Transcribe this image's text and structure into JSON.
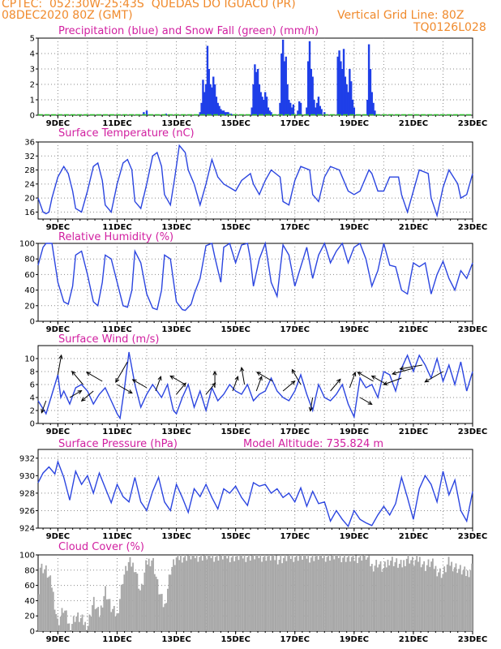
{
  "header": {
    "line1_left": "CPTEC:  052:30W-25:43S  QUEDAS DO IGUACU (PR)",
    "line2_left": "08DEC2020 80Z (GMT)",
    "line2_right": "Vertical Grid Line: 80Z",
    "line3_right": "TQ0126L028"
  },
  "colors": {
    "header": "#f08a2c",
    "title": "#d11fa0",
    "precip": "#1f3fe8",
    "snow": "#2fbf2f",
    "line": "#2b45e0",
    "cloud": "#a8a8a8",
    "arrow": "#000000"
  },
  "x_labels": [
    "9DEC",
    "11DEC",
    "13DEC",
    "15DEC",
    "17DEC",
    "19DEC",
    "21DEC",
    "23DEC"
  ],
  "chart_data": [
    {
      "id": "precip",
      "type": "bar",
      "title": "Precipitation (blue) and Snow Fall (green) (mm/h)",
      "ylim": [
        0,
        5
      ],
      "yticks": [
        0,
        1,
        2,
        3,
        4,
        5
      ],
      "xlim": [
        8.333,
        23.0
      ],
      "grid": true,
      "series": [
        {
          "name": "Precipitation",
          "x": [
            11.9,
            12.0,
            12.65,
            13.8,
            13.85,
            13.9,
            13.95,
            14.0,
            14.05,
            14.1,
            14.15,
            14.2,
            14.25,
            14.3,
            14.35,
            14.4,
            14.45,
            14.5,
            14.55,
            14.6,
            14.65,
            14.7,
            14.75,
            14.8,
            14.85,
            15.55,
            15.6,
            15.65,
            15.7,
            15.75,
            15.8,
            15.85,
            15.9,
            15.95,
            16.0,
            16.05,
            16.1,
            16.15,
            16.2,
            16.5,
            16.55,
            16.6,
            16.65,
            16.7,
            16.75,
            16.8,
            16.85,
            16.9,
            16.95,
            17.1,
            17.15,
            17.2,
            17.4,
            17.45,
            17.5,
            17.55,
            17.6,
            17.65,
            17.7,
            17.75,
            17.8,
            17.85,
            17.9,
            18.0,
            18.45,
            18.5,
            18.55,
            18.6,
            18.65,
            18.7,
            18.75,
            18.8,
            18.85,
            18.9,
            18.95,
            19.0,
            19.45,
            19.5,
            19.55,
            19.6,
            19.65,
            19.7
          ],
          "values": [
            0.2,
            0.3,
            0.1,
            0.2,
            0.8,
            2.3,
            1.5,
            2.0,
            4.5,
            3.0,
            2.0,
            1.8,
            2.5,
            2.0,
            1.2,
            0.8,
            0.6,
            0.4,
            0.3,
            0.3,
            0.2,
            0.2,
            0.2,
            0.1,
            0.1,
            0.5,
            2.0,
            3.3,
            2.8,
            3.0,
            2.0,
            1.5,
            1.2,
            1.0,
            1.5,
            1.2,
            0.5,
            0.3,
            0.2,
            0.8,
            4.0,
            4.9,
            3.5,
            3.8,
            2.0,
            1.0,
            0.8,
            0.5,
            0.7,
            0.3,
            0.9,
            0.8,
            0.5,
            3.5,
            4.8,
            3.0,
            2.5,
            1.0,
            0.5,
            0.8,
            1.2,
            0.6,
            0.4,
            0.2,
            3.8,
            4.2,
            3.5,
            3.0,
            4.3,
            2.5,
            2.0,
            1.5,
            3.0,
            2.2,
            1.0,
            0.5,
            1.0,
            4.6,
            3.0,
            1.5,
            0.8,
            0.3
          ]
        },
        {
          "name": "Snow Fall",
          "values": []
        }
      ]
    },
    {
      "id": "temperature",
      "type": "line",
      "title": "Surface Temperature (nC)",
      "ylim": [
        14,
        36
      ],
      "yticks": [
        16,
        20,
        24,
        28,
        32,
        36
      ],
      "xlim": [
        8.333,
        23.0
      ],
      "grid": true,
      "x": [
        8.333,
        8.5,
        8.6,
        8.7,
        8.8,
        9.0,
        9.2,
        9.35,
        9.5,
        9.6,
        9.8,
        10.0,
        10.2,
        10.35,
        10.5,
        10.6,
        10.8,
        11.0,
        11.2,
        11.35,
        11.5,
        11.6,
        11.8,
        12.0,
        12.2,
        12.35,
        12.5,
        12.6,
        12.8,
        12.95,
        13.1,
        13.3,
        13.4,
        13.6,
        13.8,
        14.0,
        14.2,
        14.4,
        14.6,
        14.8,
        15.0,
        15.2,
        15.5,
        15.6,
        15.8,
        16.0,
        16.2,
        16.5,
        16.6,
        16.8,
        17.0,
        17.2,
        17.5,
        17.6,
        17.8,
        18.0,
        18.2,
        18.5,
        18.6,
        18.8,
        19.0,
        19.2,
        19.5,
        19.6,
        19.8,
        20.0,
        20.2,
        20.5,
        20.6,
        20.8,
        21.0,
        21.2,
        21.5,
        21.6,
        21.8,
        22.0,
        22.2,
        22.5,
        22.6,
        22.8,
        23.0
      ],
      "y": [
        20,
        16,
        15.5,
        16,
        20,
        26,
        29,
        27,
        22,
        17,
        16,
        22,
        29,
        30,
        25,
        18,
        16,
        24,
        30,
        31,
        28,
        19,
        17,
        24,
        32,
        33,
        29,
        21,
        18,
        26,
        35,
        33,
        28,
        24,
        18,
        24,
        31,
        26,
        24,
        23,
        22,
        25,
        27,
        24,
        21,
        25,
        28,
        26,
        19,
        18,
        25,
        29,
        28,
        21,
        19,
        26,
        29,
        28,
        26,
        22,
        21,
        22,
        28,
        27,
        22,
        22,
        26,
        26,
        21,
        16,
        22,
        28,
        27,
        20,
        15,
        23,
        28,
        24,
        20,
        21,
        27
      ],
      "ranges_note": ""
    },
    {
      "id": "humidity",
      "type": "line",
      "title": "Relative Humidity (%)",
      "ylim": [
        0,
        100
      ],
      "yticks": [
        0,
        20,
        40,
        60,
        80,
        100
      ],
      "xlim": [
        8.333,
        23.0
      ],
      "grid": true,
      "x": [
        8.333,
        8.5,
        8.6,
        8.8,
        9.0,
        9.2,
        9.35,
        9.5,
        9.6,
        9.8,
        10.0,
        10.2,
        10.35,
        10.5,
        10.6,
        10.8,
        11.0,
        11.2,
        11.35,
        11.5,
        11.6,
        11.8,
        12.0,
        12.2,
        12.35,
        12.5,
        12.6,
        12.8,
        13.0,
        13.2,
        13.3,
        13.5,
        13.6,
        13.8,
        14.0,
        14.2,
        14.3,
        14.5,
        14.6,
        14.8,
        15.0,
        15.2,
        15.4,
        15.5,
        15.6,
        15.8,
        16.0,
        16.2,
        16.4,
        16.6,
        16.8,
        17.0,
        17.2,
        17.4,
        17.6,
        17.8,
        18.0,
        18.2,
        18.4,
        18.6,
        18.8,
        19.0,
        19.2,
        19.4,
        19.6,
        19.8,
        20.0,
        20.2,
        20.4,
        20.6,
        20.8,
        21.0,
        21.2,
        21.4,
        21.6,
        21.8,
        22.0,
        22.2,
        22.4,
        22.6,
        22.8,
        23.0
      ],
      "y": [
        72,
        95,
        100,
        100,
        50,
        25,
        22,
        45,
        85,
        90,
        60,
        25,
        20,
        50,
        85,
        80,
        50,
        20,
        18,
        40,
        90,
        75,
        35,
        17,
        15,
        40,
        85,
        80,
        25,
        15,
        14,
        22,
        35,
        55,
        97,
        100,
        82,
        50,
        95,
        100,
        75,
        98,
        100,
        80,
        45,
        80,
        100,
        50,
        32,
        98,
        85,
        45,
        70,
        95,
        55,
        85,
        100,
        75,
        90,
        100,
        75,
        95,
        100,
        80,
        45,
        65,
        100,
        72,
        70,
        40,
        35,
        75,
        70,
        75,
        35,
        60,
        77,
        55,
        40,
        65,
        55,
        75
      ]
    },
    {
      "id": "wind",
      "type": "line",
      "title": "Surface Wind (m/s)",
      "ylim": [
        0,
        12
      ],
      "yticks": [
        0,
        2,
        4,
        6,
        8,
        10
      ],
      "xlim": [
        8.333,
        23.0
      ],
      "grid": true,
      "x": [
        8.333,
        8.6,
        8.8,
        9.0,
        9.1,
        9.2,
        9.4,
        9.6,
        9.8,
        10.0,
        10.2,
        10.4,
        10.6,
        10.8,
        11.0,
        11.1,
        11.25,
        11.4,
        11.6,
        11.8,
        12.0,
        12.2,
        12.5,
        12.7,
        12.9,
        13.0,
        13.2,
        13.4,
        13.6,
        13.8,
        14.0,
        14.2,
        14.4,
        14.6,
        14.8,
        15.0,
        15.2,
        15.4,
        15.6,
        15.8,
        16.0,
        16.2,
        16.4,
        16.6,
        16.8,
        17.0,
        17.2,
        17.4,
        17.6,
        17.8,
        18.0,
        18.2,
        18.4,
        18.6,
        18.8,
        19.0,
        19.2,
        19.4,
        19.6,
        19.8,
        20.0,
        20.2,
        20.4,
        20.6,
        20.8,
        21.0,
        21.2,
        21.4,
        21.6,
        21.8,
        22.0,
        22.2,
        22.4,
        22.6,
        22.8,
        23.0
      ],
      "y": [
        3.5,
        1.5,
        4.5,
        7.5,
        4.0,
        5.0,
        3.0,
        5.5,
        6.0,
        5.0,
        3.0,
        4.5,
        5.5,
        3.5,
        1.5,
        0.8,
        5.5,
        11.0,
        6.0,
        2.5,
        4.5,
        6.0,
        4.0,
        6.0,
        2.0,
        1.5,
        4.0,
        6.0,
        2.5,
        5.0,
        2.0,
        5.5,
        3.5,
        4.5,
        6.0,
        5.0,
        4.5,
        6.0,
        3.5,
        4.5,
        5.0,
        7.0,
        5.0,
        4.0,
        3.5,
        5.0,
        7.5,
        4.5,
        2.0,
        6.0,
        4.0,
        3.5,
        4.5,
        6.0,
        3.0,
        1.0,
        7.0,
        5.5,
        6.0,
        4.0,
        8.0,
        7.5,
        5.0,
        8.5,
        10.5,
        8.0,
        10.5,
        9.0,
        7.0,
        10.0,
        6.5,
        9.0,
        6.0,
        9.5,
        5.0,
        8.0
      ],
      "arrows": [
        {
          "x": 8.6,
          "speed": 3.5,
          "dir_deg": 200
        },
        {
          "x": 9.0,
          "speed": 7.5,
          "dir_deg": 10
        },
        {
          "x": 9.4,
          "speed": 4.0,
          "dir_deg": 60
        },
        {
          "x": 9.85,
          "speed": 6.0,
          "dir_deg": 320
        },
        {
          "x": 10.2,
          "speed": 5.0,
          "dir_deg": 230
        },
        {
          "x": 10.5,
          "speed": 6.5,
          "dir_deg": 300
        },
        {
          "x": 11.0,
          "speed": 6.0,
          "dir_deg": 120
        },
        {
          "x": 11.35,
          "speed": 9.5,
          "dir_deg": 210
        },
        {
          "x": 12.0,
          "speed": 5.5,
          "dir_deg": 300
        },
        {
          "x": 12.3,
          "speed": 5.0,
          "dir_deg": 20
        },
        {
          "x": 13.0,
          "speed": 4.5,
          "dir_deg": 40
        },
        {
          "x": 13.3,
          "speed": 6.0,
          "dir_deg": 300
        },
        {
          "x": 14.0,
          "speed": 4.5,
          "dir_deg": 40
        },
        {
          "x": 14.3,
          "speed": 5.5,
          "dir_deg": 0
        },
        {
          "x": 14.9,
          "speed": 5.0,
          "dir_deg": 20
        },
        {
          "x": 15.3,
          "speed": 6.0,
          "dir_deg": 350
        },
        {
          "x": 15.7,
          "speed": 5.0,
          "dir_deg": 20
        },
        {
          "x": 16.25,
          "speed": 6.5,
          "dir_deg": 300
        },
        {
          "x": 16.6,
          "speed": 5.0,
          "dir_deg": 50
        },
        {
          "x": 17.2,
          "speed": 6.0,
          "dir_deg": 330
        },
        {
          "x": 17.6,
          "speed": 4.0,
          "dir_deg": 190
        },
        {
          "x": 18.2,
          "speed": 5.0,
          "dir_deg": 40
        },
        {
          "x": 18.85,
          "speed": 5.5,
          "dir_deg": 20
        },
        {
          "x": 19.2,
          "speed": 4.0,
          "dir_deg": 120
        },
        {
          "x": 19.65,
          "speed": 6.5,
          "dir_deg": 300
        },
        {
          "x": 20.1,
          "speed": 6.0,
          "dir_deg": 300
        },
        {
          "x": 20.6,
          "speed": 7.0,
          "dir_deg": 250
        },
        {
          "x": 21.0,
          "speed": 8.5,
          "dir_deg": 255
        },
        {
          "x": 21.3,
          "speed": 9.0,
          "dir_deg": 260
        },
        {
          "x": 22.0,
          "speed": 8.0,
          "dir_deg": 240
        }
      ]
    },
    {
      "id": "pressure",
      "type": "line",
      "title": "Surface Pressure (hPa)",
      "annotation": "Model Altitude: 735.824 m",
      "ylim": [
        924,
        933
      ],
      "yticks": [
        924,
        926,
        928,
        930,
        932
      ],
      "xlim": [
        8.333,
        23.0
      ],
      "grid": true,
      "x": [
        8.333,
        8.5,
        8.7,
        8.9,
        9.0,
        9.2,
        9.4,
        9.6,
        9.8,
        10.0,
        10.2,
        10.4,
        10.6,
        10.8,
        11.0,
        11.2,
        11.4,
        11.6,
        11.8,
        12.0,
        12.2,
        12.4,
        12.6,
        12.8,
        13.0,
        13.2,
        13.4,
        13.6,
        13.8,
        14.0,
        14.2,
        14.4,
        14.6,
        14.8,
        15.0,
        15.2,
        15.4,
        15.6,
        15.8,
        16.0,
        16.2,
        16.4,
        16.6,
        16.8,
        17.0,
        17.2,
        17.4,
        17.6,
        17.8,
        18.0,
        18.2,
        18.4,
        18.6,
        18.8,
        19.0,
        19.2,
        19.4,
        19.6,
        19.8,
        20.0,
        20.2,
        20.4,
        20.6,
        20.8,
        21.0,
        21.2,
        21.4,
        21.6,
        21.8,
        22.0,
        22.2,
        22.4,
        22.6,
        22.8,
        23.0
      ],
      "y": [
        929.2,
        930.3,
        931.0,
        930.2,
        931.6,
        929.8,
        927.2,
        930.5,
        929.0,
        930.0,
        928.0,
        930.3,
        928.6,
        926.9,
        929.0,
        927.6,
        927.0,
        929.8,
        927.0,
        926.0,
        928.2,
        929.8,
        927.0,
        926.0,
        929.0,
        927.5,
        925.8,
        928.5,
        927.6,
        929.0,
        927.5,
        926.2,
        928.5,
        928.0,
        928.8,
        927.5,
        926.6,
        929.2,
        928.8,
        929.0,
        928.0,
        928.5,
        927.5,
        928.0,
        927.0,
        928.6,
        926.5,
        928.2,
        926.8,
        927.0,
        924.8,
        926.0,
        925.0,
        924.2,
        926.0,
        925.0,
        924.6,
        924.3,
        925.5,
        926.5,
        925.5,
        926.8,
        929.8,
        927.5,
        925.0,
        928.5,
        930.0,
        929.0,
        927.0,
        930.5,
        927.8,
        929.5,
        926.0,
        924.8,
        928.2
      ]
    },
    {
      "id": "cloud",
      "type": "area",
      "title": "Cloud Cover (%)",
      "ylim": [
        0,
        100
      ],
      "yticks": [
        0,
        20,
        40,
        60,
        80,
        100
      ],
      "xlim": [
        8.333,
        23.0
      ],
      "grid": true,
      "x": [
        8.333,
        8.4,
        8.6,
        8.8,
        9.0,
        9.2,
        9.4,
        9.6,
        9.8,
        10.0,
        10.2,
        10.4,
        10.6,
        10.8,
        11.0,
        11.2,
        11.4,
        11.6,
        11.8,
        12.0,
        12.2,
        12.4,
        12.6,
        12.8,
        13.0,
        13.2,
        13.4,
        13.6,
        13.8,
        14.0,
        14.5,
        15.0,
        15.5,
        16.0,
        16.5,
        17.0,
        17.5,
        18.0,
        18.5,
        19.0,
        19.2,
        19.4,
        19.6,
        19.8,
        20.0,
        20.2,
        20.4,
        20.6,
        20.8,
        21.0,
        21.2,
        21.4,
        21.6,
        21.8,
        22.0,
        22.2,
        22.4,
        22.6,
        22.8,
        23.0
      ],
      "y": [
        40,
        85,
        80,
        60,
        10,
        30,
        5,
        20,
        15,
        5,
        40,
        20,
        55,
        30,
        20,
        70,
        90,
        85,
        50,
        90,
        95,
        55,
        30,
        80,
        95,
        98,
        99,
        99,
        99,
        99,
        99,
        98,
        99,
        99,
        95,
        99,
        98,
        99,
        99,
        95,
        99,
        99,
        85,
        90,
        80,
        95,
        90,
        85,
        98,
        90,
        95,
        85,
        90,
        80,
        75,
        90,
        85,
        80,
        75,
        85
      ]
    }
  ]
}
